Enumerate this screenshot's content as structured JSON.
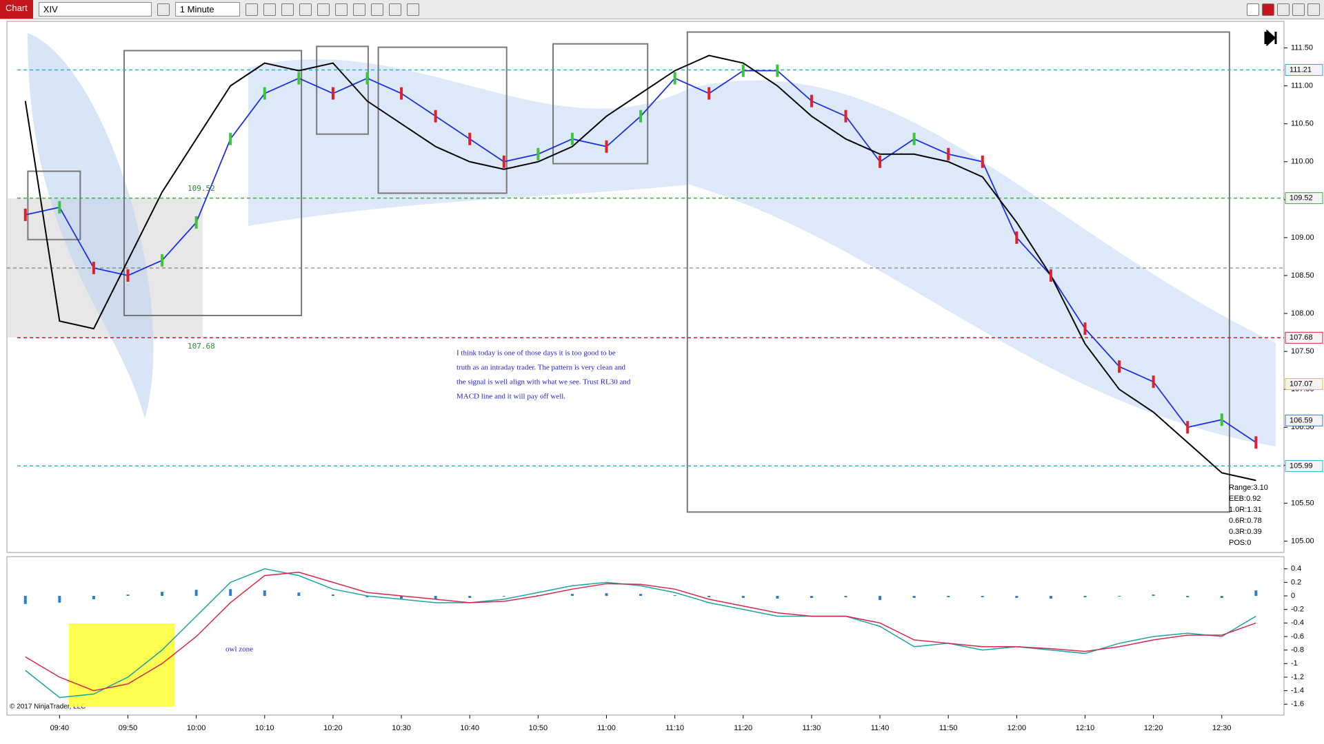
{
  "toolbar": {
    "title": "Chart",
    "instrument": "XIV",
    "interval": "1 Minute"
  },
  "copyright": "© 2017 NinjaTrader, LLC",
  "chart_data": [
    {
      "type": "line",
      "x": [
        575,
        580,
        585,
        590,
        595,
        600,
        605,
        610,
        615,
        620,
        625,
        630,
        635,
        640,
        645,
        650,
        655,
        660,
        665,
        670,
        675,
        680,
        685,
        690,
        695,
        700,
        705,
        710,
        715,
        720,
        725,
        730,
        735,
        740,
        745,
        750,
        755
      ],
      "xlim": [
        572.3,
        759.1
      ],
      "ylim": [
        104.85,
        111.85
      ],
      "yticks": [
        {
          "value": 105,
          "label": "105.00"
        },
        {
          "value": 105.5,
          "label": "105.50"
        },
        {
          "value": 106,
          "label": "106.00"
        },
        {
          "value": 106.5,
          "label": "106.50"
        },
        {
          "value": 107,
          "label": "107.00"
        },
        {
          "value": 107.5,
          "label": "107.50"
        },
        {
          "value": 108,
          "label": "108.00"
        },
        {
          "value": 108.5,
          "label": "108.50"
        },
        {
          "value": 109,
          "label": "109.00"
        },
        {
          "value": 109.5,
          "label": "109.50"
        },
        {
          "value": 110,
          "label": "110.00"
        },
        {
          "value": 110.5,
          "label": "110.50"
        },
        {
          "value": 111,
          "label": "111.00"
        },
        {
          "value": 111.5,
          "label": "111.50"
        }
      ],
      "series": [
        {
          "color": "#1a2fe0",
          "values": [
            109.3,
            109.4,
            108.6,
            108.5,
            108.7,
            109.2,
            110.3,
            110.9,
            111.1,
            110.9,
            111.1,
            110.9,
            110.6,
            110.3,
            110.0,
            110.1,
            110.3,
            110.2,
            110.6,
            111.1,
            110.9,
            111.2,
            111.2,
            110.8,
            110.6,
            110.0,
            110.3,
            110.1,
            110.0,
            109.0,
            108.5,
            107.8,
            107.3,
            107.1,
            106.5,
            106.6,
            106.3
          ]
        },
        {
          "color": "#000000",
          "values": [
            110.8,
            107.9,
            107.8,
            108.7,
            109.6,
            110.3,
            111.0,
            111.3,
            111.2,
            111.3,
            110.8,
            110.5,
            110.2,
            110.0,
            109.9,
            110.0,
            110.2,
            110.6,
            110.9,
            111.2,
            111.4,
            111.3,
            111.0,
            110.6,
            110.3,
            110.1,
            110.1,
            110.0,
            109.8,
            109.2,
            108.5,
            107.6,
            107.0,
            106.7,
            106.3,
            105.9,
            105.8
          ]
        }
      ],
      "price_levels": [
        {
          "value": 111.21,
          "color": "#29b0d8",
          "line": true
        },
        {
          "value": 109.52,
          "color": "#2fb52f",
          "line": true
        },
        {
          "value": 107.68,
          "color": "#d01c2c",
          "line": true
        },
        {
          "value": 107.07,
          "color": "#e8c23a",
          "line": false
        },
        {
          "value": 106.59,
          "color": "#3a78c8",
          "line": false
        },
        {
          "value": 105.99,
          "color": "#29b0d8",
          "line": true
        }
      ],
      "reference_lines": [
        {
          "value": 108.6,
          "color": "#666666"
        }
      ],
      "annotations": [
        "109.52",
        "107.68"
      ],
      "note": [
        "I think today is one of those days it is too good to be",
        "truth as an intraday trader. The pattern is very clean and",
        "the signal is well align with what we see. Trust RL30 and",
        "MACD line and it will pay off well."
      ],
      "stats": [
        "Range:3.10",
        "EEB:0.92",
        "1.0R:1.31",
        "0.6R:0.78",
        "0.3R:0.39",
        "POS:0"
      ]
    },
    {
      "type": "macd",
      "x": [
        575,
        580,
        585,
        590,
        595,
        600,
        605,
        610,
        615,
        620,
        625,
        630,
        635,
        640,
        645,
        650,
        655,
        660,
        665,
        670,
        675,
        680,
        685,
        690,
        695,
        700,
        705,
        710,
        715,
        720,
        725,
        730,
        735,
        740,
        745,
        750,
        755
      ],
      "xlim": [
        572.3,
        759.1
      ],
      "xticks": [
        {
          "value": 580,
          "label": "09:40"
        },
        {
          "value": 590,
          "label": "09:50"
        },
        {
          "value": 600,
          "label": "10:00"
        },
        {
          "value": 610,
          "label": "10:10"
        },
        {
          "value": 620,
          "label": "10:20"
        },
        {
          "value": 630,
          "label": "10:30"
        },
        {
          "value": 640,
          "label": "10:40"
        },
        {
          "value": 650,
          "label": "10:50"
        },
        {
          "value": 660,
          "label": "11:00"
        },
        {
          "value": 670,
          "label": "11:10"
        },
        {
          "value": 680,
          "label": "11:20"
        },
        {
          "value": 690,
          "label": "11:30"
        },
        {
          "value": 700,
          "label": "11:40"
        },
        {
          "value": 710,
          "label": "11:50"
        },
        {
          "value": 720,
          "label": "12:00"
        },
        {
          "value": 730,
          "label": "12:10"
        },
        {
          "value": 740,
          "label": "12:20"
        },
        {
          "value": 750,
          "label": "12:30"
        }
      ],
      "ylim": [
        -1.76,
        0.58
      ],
      "yticks": [
        0.4,
        0.2,
        0,
        -0.2,
        -0.4,
        -0.6,
        -0.8,
        -1,
        -1.2,
        -1.4,
        -1.6
      ],
      "histogram": {
        "color": "#2a7fd4",
        "values": [
          -0.12,
          -0.1,
          -0.05,
          0.02,
          0.06,
          0.09,
          0.1,
          0.08,
          0.05,
          0.02,
          -0.02,
          -0.04,
          -0.05,
          -0.03,
          -0.01,
          0.01,
          0.03,
          0.04,
          0.03,
          0.01,
          -0.02,
          -0.03,
          -0.04,
          -0.03,
          -0.02,
          -0.06,
          -0.03,
          -0.02,
          -0.02,
          -0.03,
          -0.04,
          -0.02,
          -0.01,
          0.02,
          -0.02,
          -0.03,
          0.08
        ]
      },
      "series": [
        {
          "color": "#1aa3a3",
          "values": [
            -1.1,
            -1.5,
            -1.45,
            -1.2,
            -0.8,
            -0.3,
            0.2,
            0.4,
            0.3,
            0.1,
            0.0,
            -0.05,
            -0.1,
            -0.1,
            -0.05,
            0.05,
            0.15,
            0.2,
            0.15,
            0.05,
            -0.1,
            -0.2,
            -0.3,
            -0.3,
            -0.3,
            -0.45,
            -0.75,
            -0.7,
            -0.8,
            -0.75,
            -0.8,
            -0.85,
            -0.7,
            -0.6,
            -0.55,
            -0.6,
            -0.3
          ]
        },
        {
          "color": "#d8254a",
          "values": [
            -0.9,
            -1.2,
            -1.4,
            -1.3,
            -1.0,
            -0.6,
            -0.1,
            0.3,
            0.35,
            0.2,
            0.05,
            0.0,
            -0.05,
            -0.1,
            -0.08,
            0.0,
            0.1,
            0.18,
            0.17,
            0.1,
            -0.05,
            -0.15,
            -0.25,
            -0.3,
            -0.3,
            -0.4,
            -0.65,
            -0.7,
            -0.75,
            -0.75,
            -0.78,
            -0.82,
            -0.75,
            -0.65,
            -0.58,
            -0.58,
            -0.4
          ]
        }
      ],
      "owl_label": "owl zone"
    }
  ]
}
